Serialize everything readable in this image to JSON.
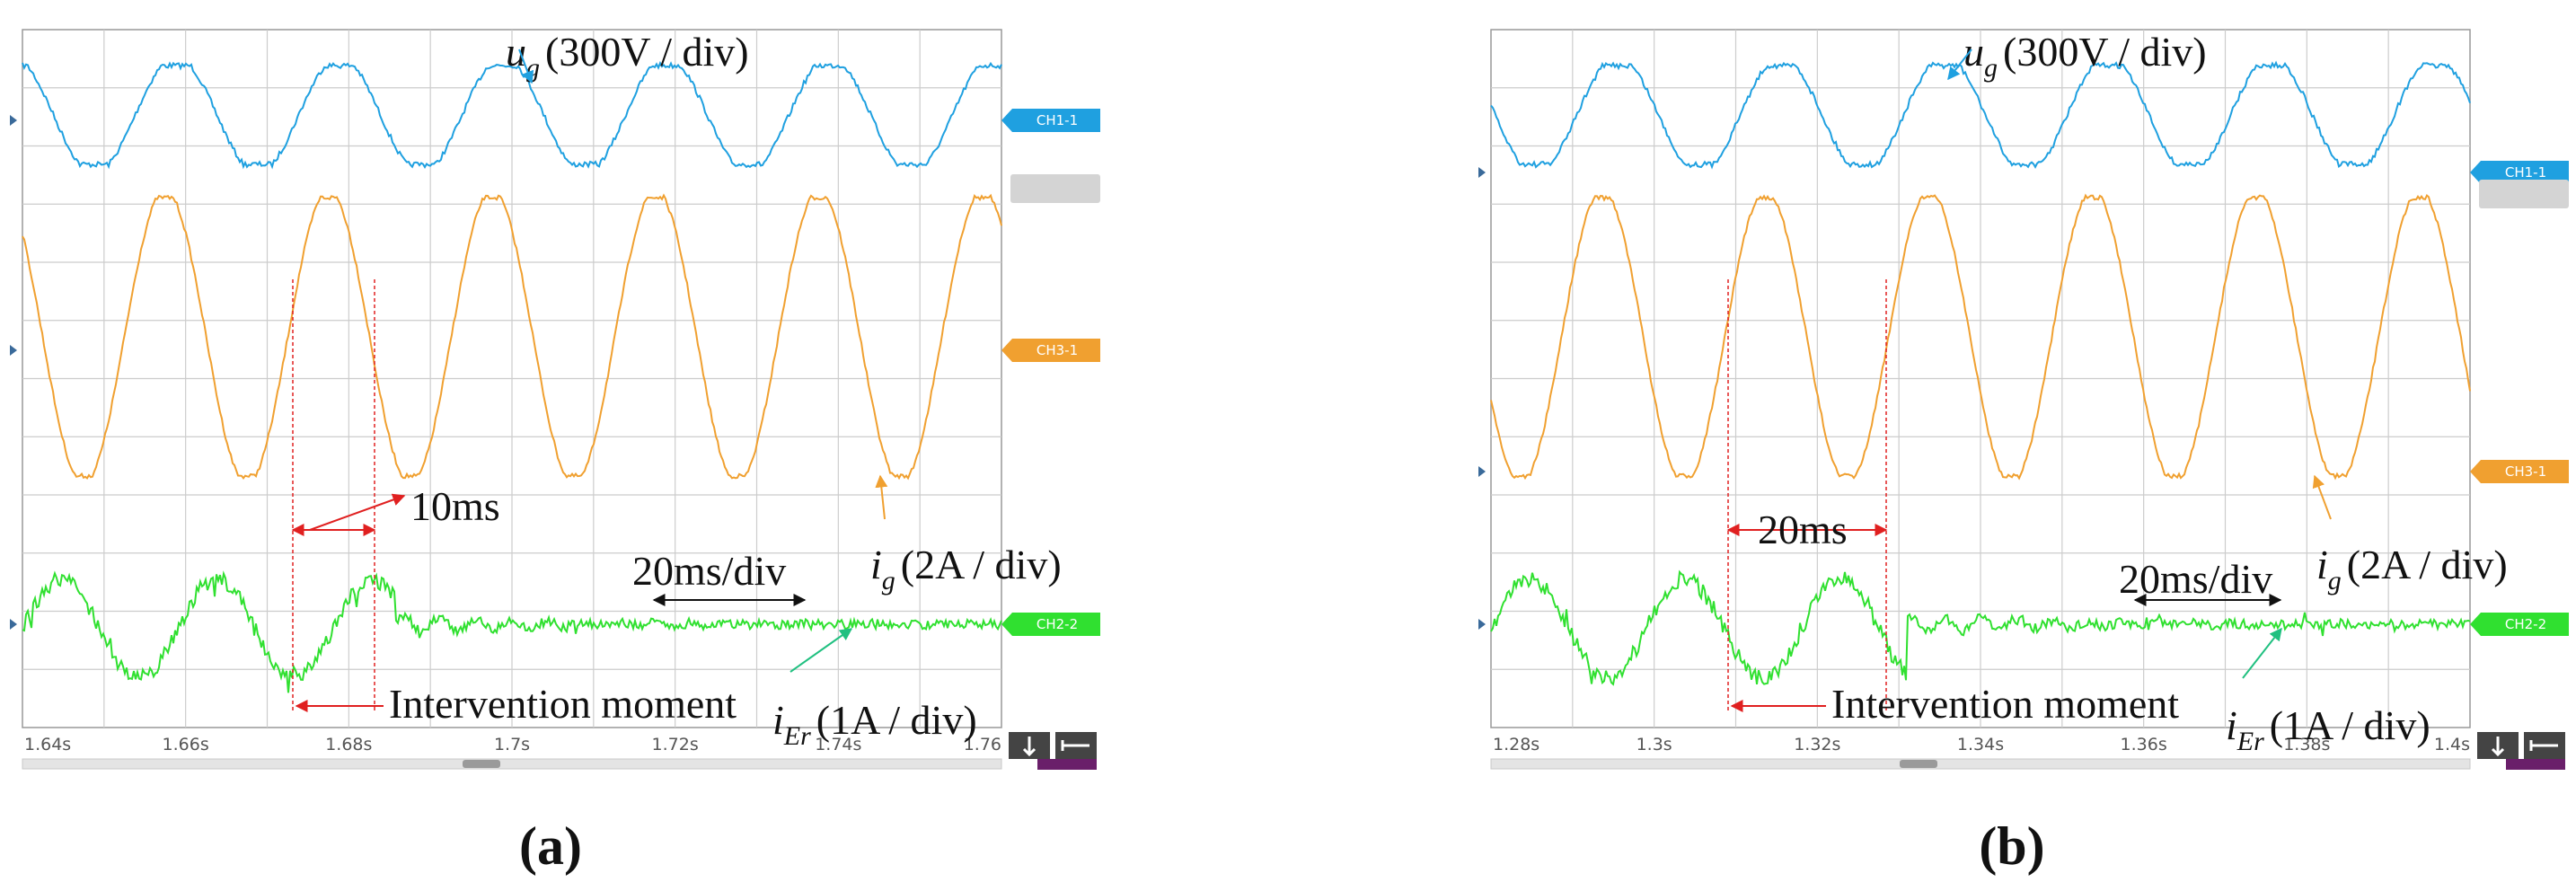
{
  "panels": [
    {
      "caption": "(a)",
      "x_tick_labels": [
        "1.64s",
        "1.66s",
        "1.68s",
        "1.7s",
        "1.72s",
        "1.74s",
        "1.76"
      ],
      "channel_tags": [
        "CH1-1",
        "CH3-1",
        "CH2-2"
      ],
      "grid_voltage": {
        "symbol": "u",
        "subscript": "g",
        "scale": "(300V / div)"
      },
      "grid_current": {
        "symbol": "i",
        "subscript": "g",
        "scale": "(2A / div)"
      },
      "error_current": {
        "symbol": "i",
        "subscript": "Er",
        "scale": "(1A / div)"
      },
      "interval": "10ms",
      "time_base": "20ms/div",
      "event": "Intervention moment"
    },
    {
      "caption": "(b)",
      "x_tick_labels": [
        "1.28s",
        "1.3s",
        "1.32s",
        "1.34s",
        "1.36s",
        "1.38s",
        "1.4s"
      ],
      "channel_tags": [
        "CH1-1",
        "CH3-1",
        "CH2-2"
      ],
      "grid_voltage": {
        "symbol": "u",
        "subscript": "g",
        "scale": "(300V / div)"
      },
      "grid_current": {
        "symbol": "i",
        "subscript": "g",
        "scale": "(2A / div)"
      },
      "error_current": {
        "symbol": "i",
        "subscript": "Er",
        "scale": "(1A / div)"
      },
      "interval": "20ms",
      "time_base": "20ms/div",
      "event": "Intervention moment"
    }
  ]
}
